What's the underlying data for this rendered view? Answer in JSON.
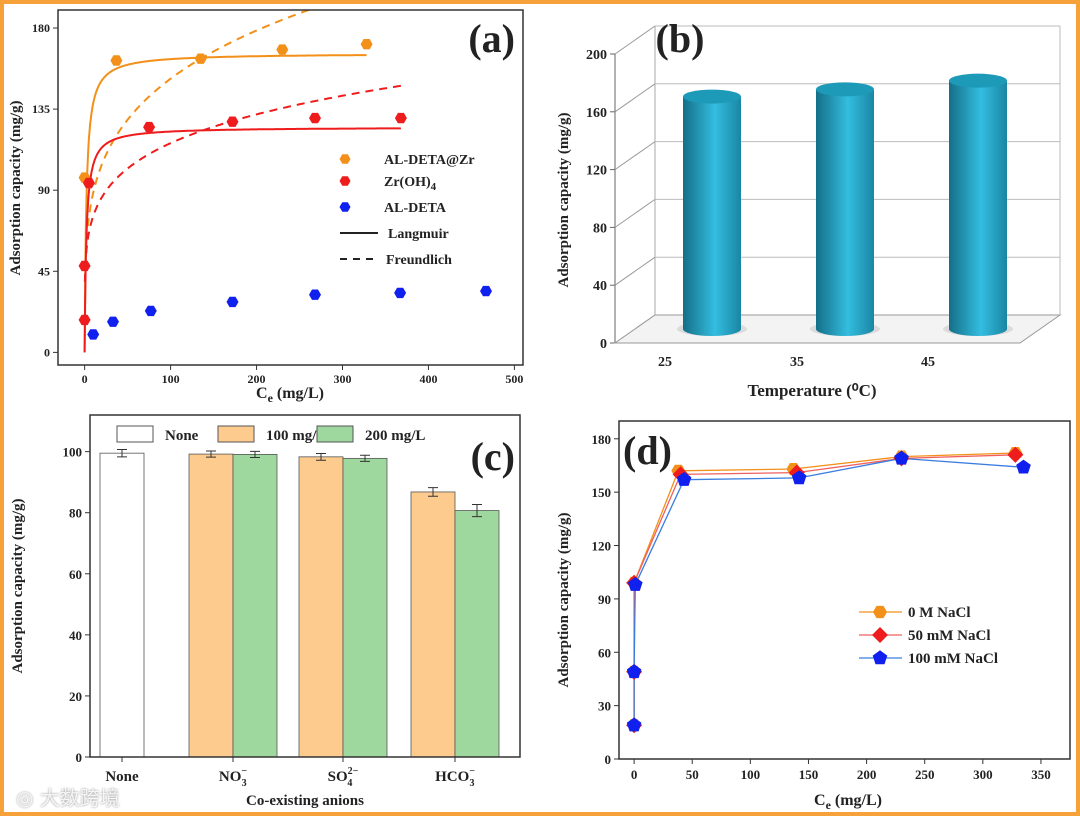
{
  "watermark": "大数跨境",
  "chart_data": [
    {
      "panel": "(a)",
      "type": "scatter",
      "xlabel": "Ce (mg/L)",
      "xlabel_base": "C",
      "xlabel_sub": "e",
      "xlabel_rest": " (mg/L)",
      "ylabel": "Adsorption capacity (mg/g)",
      "xlim": [
        -31,
        510
      ],
      "ylim": [
        -7,
        190
      ],
      "xticks": [
        0,
        100,
        200,
        300,
        400,
        500
      ],
      "yticks": [
        0,
        45,
        90,
        135,
        180
      ],
      "legend_position": "center-right",
      "series": [
        {
          "name": "AL-DETA@Zr",
          "color": "#f39019",
          "x": [
            0,
            37,
            135,
            230,
            328
          ],
          "y": [
            97,
            162,
            163,
            168,
            171
          ],
          "langmuir": {
            "qm": 166,
            "KL": 0.5,
            "xmax": 328
          },
          "freundlich": {
            "KF": 51.7,
            "inv_n": 0.234,
            "xmax": 330
          }
        },
        {
          "name": "Zr(OH)4",
          "name_base": "Zr(OH)",
          "name_sub": "4",
          "color": "#ee1c1c",
          "x": [
            0,
            0,
            5,
            75,
            172,
            268,
            368
          ],
          "y": [
            18,
            48,
            94,
            125,
            128,
            130,
            130
          ],
          "langmuir": {
            "qm": 125,
            "KL": 0.5,
            "xmax": 368
          },
          "freundlich": {
            "KF": 49.3,
            "inv_n": 0.186,
            "xmax": 370
          }
        },
        {
          "name": "AL-DETA",
          "color": "#1020ee",
          "x": [
            10,
            33,
            77,
            172,
            268,
            367,
            467
          ],
          "y": [
            10,
            17,
            23,
            28,
            32,
            33,
            34
          ]
        }
      ],
      "legend_lines": [
        "Langmuir",
        "Freundlich"
      ]
    },
    {
      "panel": "(b)",
      "type": "bar",
      "categories": [
        "25",
        "35",
        "45"
      ],
      "values": [
        165,
        170,
        176
      ],
      "xlabel": "Temperature (⁰C)",
      "ylabel": "Adsorption capacity (mg/g)",
      "ylim": [
        0,
        200
      ],
      "yticks": [
        0,
        40,
        80,
        120,
        160,
        200
      ],
      "color": "#2aa9c9"
    },
    {
      "panel": "(c)",
      "type": "bar",
      "categories": [
        {
          "base": "None",
          "sub": "",
          "sup": ""
        },
        {
          "base": "NO",
          "sub": "3",
          "sup": "−"
        },
        {
          "base": "SO",
          "sub": "4",
          "sup": "2−"
        },
        {
          "base": "HCO",
          "sub": "3",
          "sup": "−"
        }
      ],
      "series": [
        {
          "name": "None",
          "color": "#ffffff",
          "values": [
            99.5,
            null,
            null,
            null
          ],
          "errors": [
            1.2,
            null,
            null,
            null
          ]
        },
        {
          "name": "100 mg/L",
          "color": "#fdcb8e",
          "values": [
            null,
            99.2,
            98.3,
            86.8
          ],
          "errors": [
            null,
            1.0,
            1.1,
            1.4
          ]
        },
        {
          "name": "200 mg/L",
          "color": "#9fd89f",
          "values": [
            null,
            99.1,
            97.8,
            80.7
          ],
          "errors": [
            null,
            1.0,
            1.0,
            2.0
          ]
        }
      ],
      "xlabel": "Co-existing anions",
      "ylabel": "Adsorption capacity (mg/g)",
      "ylim": [
        0,
        112
      ],
      "yticks": [
        0,
        20,
        40,
        60,
        80,
        100
      ],
      "legend_position": "top"
    },
    {
      "panel": "(d)",
      "type": "line",
      "xlabel": "Ce (mg/L)",
      "xlabel_base": "C",
      "xlabel_sub": "e",
      "xlabel_rest": " (mg/L)",
      "ylabel": "Adsorption capacity (mg/g)",
      "xlim": [
        -13,
        375
      ],
      "ylim": [
        0,
        190
      ],
      "xticks": [
        0,
        50,
        100,
        150,
        200,
        250,
        300,
        350
      ],
      "yticks": [
        0,
        30,
        60,
        90,
        120,
        150,
        180
      ],
      "legend_position": "center-right",
      "series": [
        {
          "name": "0 M NaCl",
          "color": "#f39019",
          "marker": "hexagon",
          "x": [
            0,
            0,
            0,
            38,
            137,
            230,
            328
          ],
          "y": [
            19,
            49,
            99,
            162,
            163,
            170,
            172
          ]
        },
        {
          "name": "50 mM NaCl",
          "color": "#ee1c1c",
          "marker": "diamond",
          "x": [
            0,
            0,
            0,
            40,
            140,
            230,
            328
          ],
          "y": [
            19,
            49,
            99,
            160,
            161,
            169,
            171
          ]
        },
        {
          "name": "100 mM NaCl",
          "color": "#1020ee",
          "marker": "pentagon",
          "x": [
            0,
            0,
            1,
            43,
            142,
            230,
            335
          ],
          "y": [
            19,
            49,
            98,
            157,
            158,
            169,
            164
          ]
        }
      ]
    }
  ]
}
